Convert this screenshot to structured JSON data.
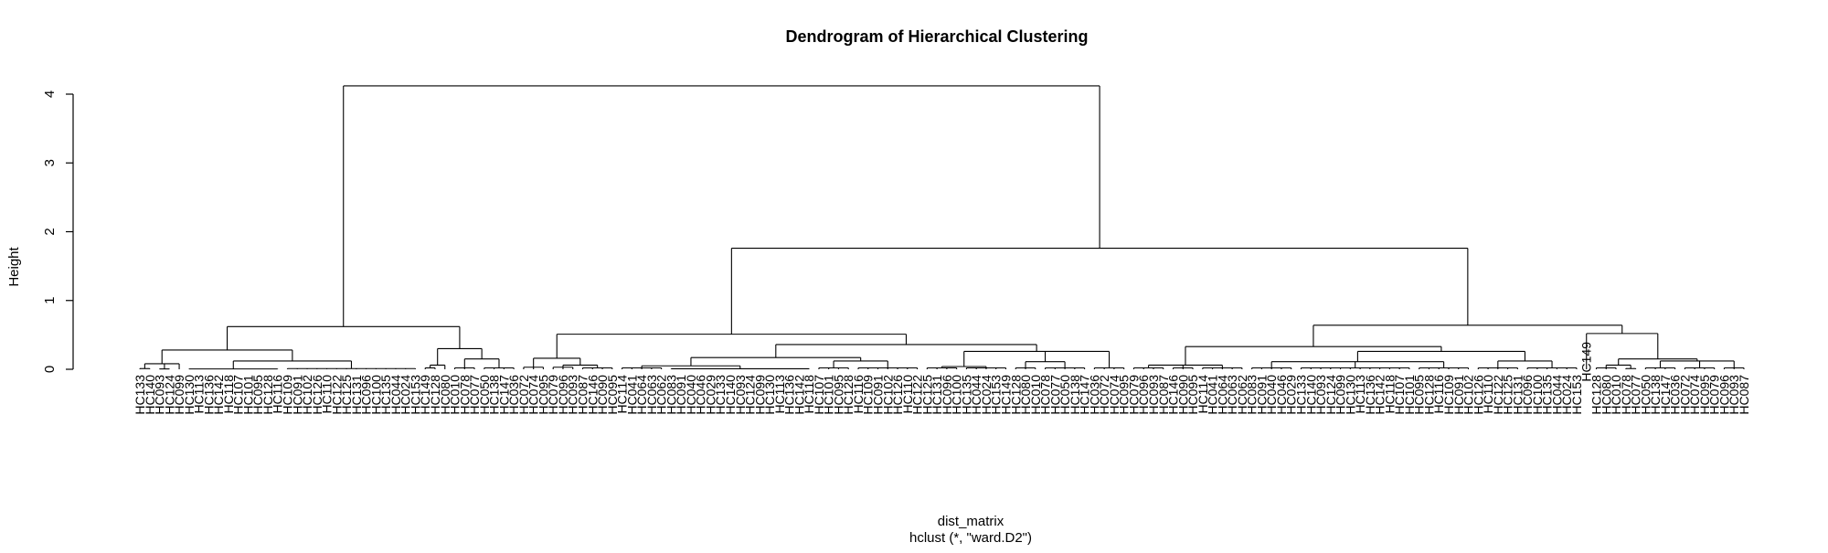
{
  "chart_data": {
    "type": "dendrogram",
    "title": "Dendrogram of Hierarchical Clustering",
    "xlabel": "dist_matrix",
    "sub": "hclust (*, \"ward.D2\")",
    "ylabel": "Height",
    "ylim": [
      0,
      4.2
    ],
    "yticks": [
      0,
      1,
      2,
      3,
      4
    ],
    "leaf_count": 129,
    "leaf_labels_visible": [
      "HC133",
      "HC140",
      "HC093",
      "HC124",
      "HC099",
      "HC130",
      "HC113",
      "HC136",
      "HC142",
      "HC118",
      "HC107",
      "HC101",
      "HC095",
      "HC128",
      "HC116",
      "HC109",
      "HC091",
      "HC102",
      "HC126",
      "HC110",
      "HC122",
      "HC125",
      "HC131",
      "HC096",
      "HC100",
      "HC135",
      "HC044",
      "HC024",
      "HC153",
      "HC149",
      "HC128",
      "HC080",
      "HC010",
      "HC078",
      "HC077",
      "HC050",
      "HC138",
      "HC147",
      "HC036",
      "HC072",
      "HC074",
      "HC095",
      "HC079",
      "HC096",
      "HC093",
      "HC087",
      "HC146",
      "HC090",
      "HC095",
      "HC114",
      "HC041",
      "HC064",
      "HC063",
      "HC062",
      "HC083",
      "HC091",
      "HC040",
      "HC046",
      "HC029"
    ],
    "merges_major": [
      {
        "height": 4.12,
        "between": [
          "left-cluster",
          "right-cluster"
        ]
      },
      {
        "height": 1.76,
        "between": [
          "right-middle-cluster",
          "right-end-cluster"
        ]
      },
      {
        "height": 0.64,
        "between": [
          "left-sub-a",
          "left-sub-b"
        ]
      },
      {
        "height": 0.64,
        "between": [
          "right-end-sub-a",
          "HC135-group"
        ]
      },
      {
        "height": 0.52,
        "between": [
          "middle-sub-a",
          "middle-sub-b"
        ]
      }
    ]
  }
}
